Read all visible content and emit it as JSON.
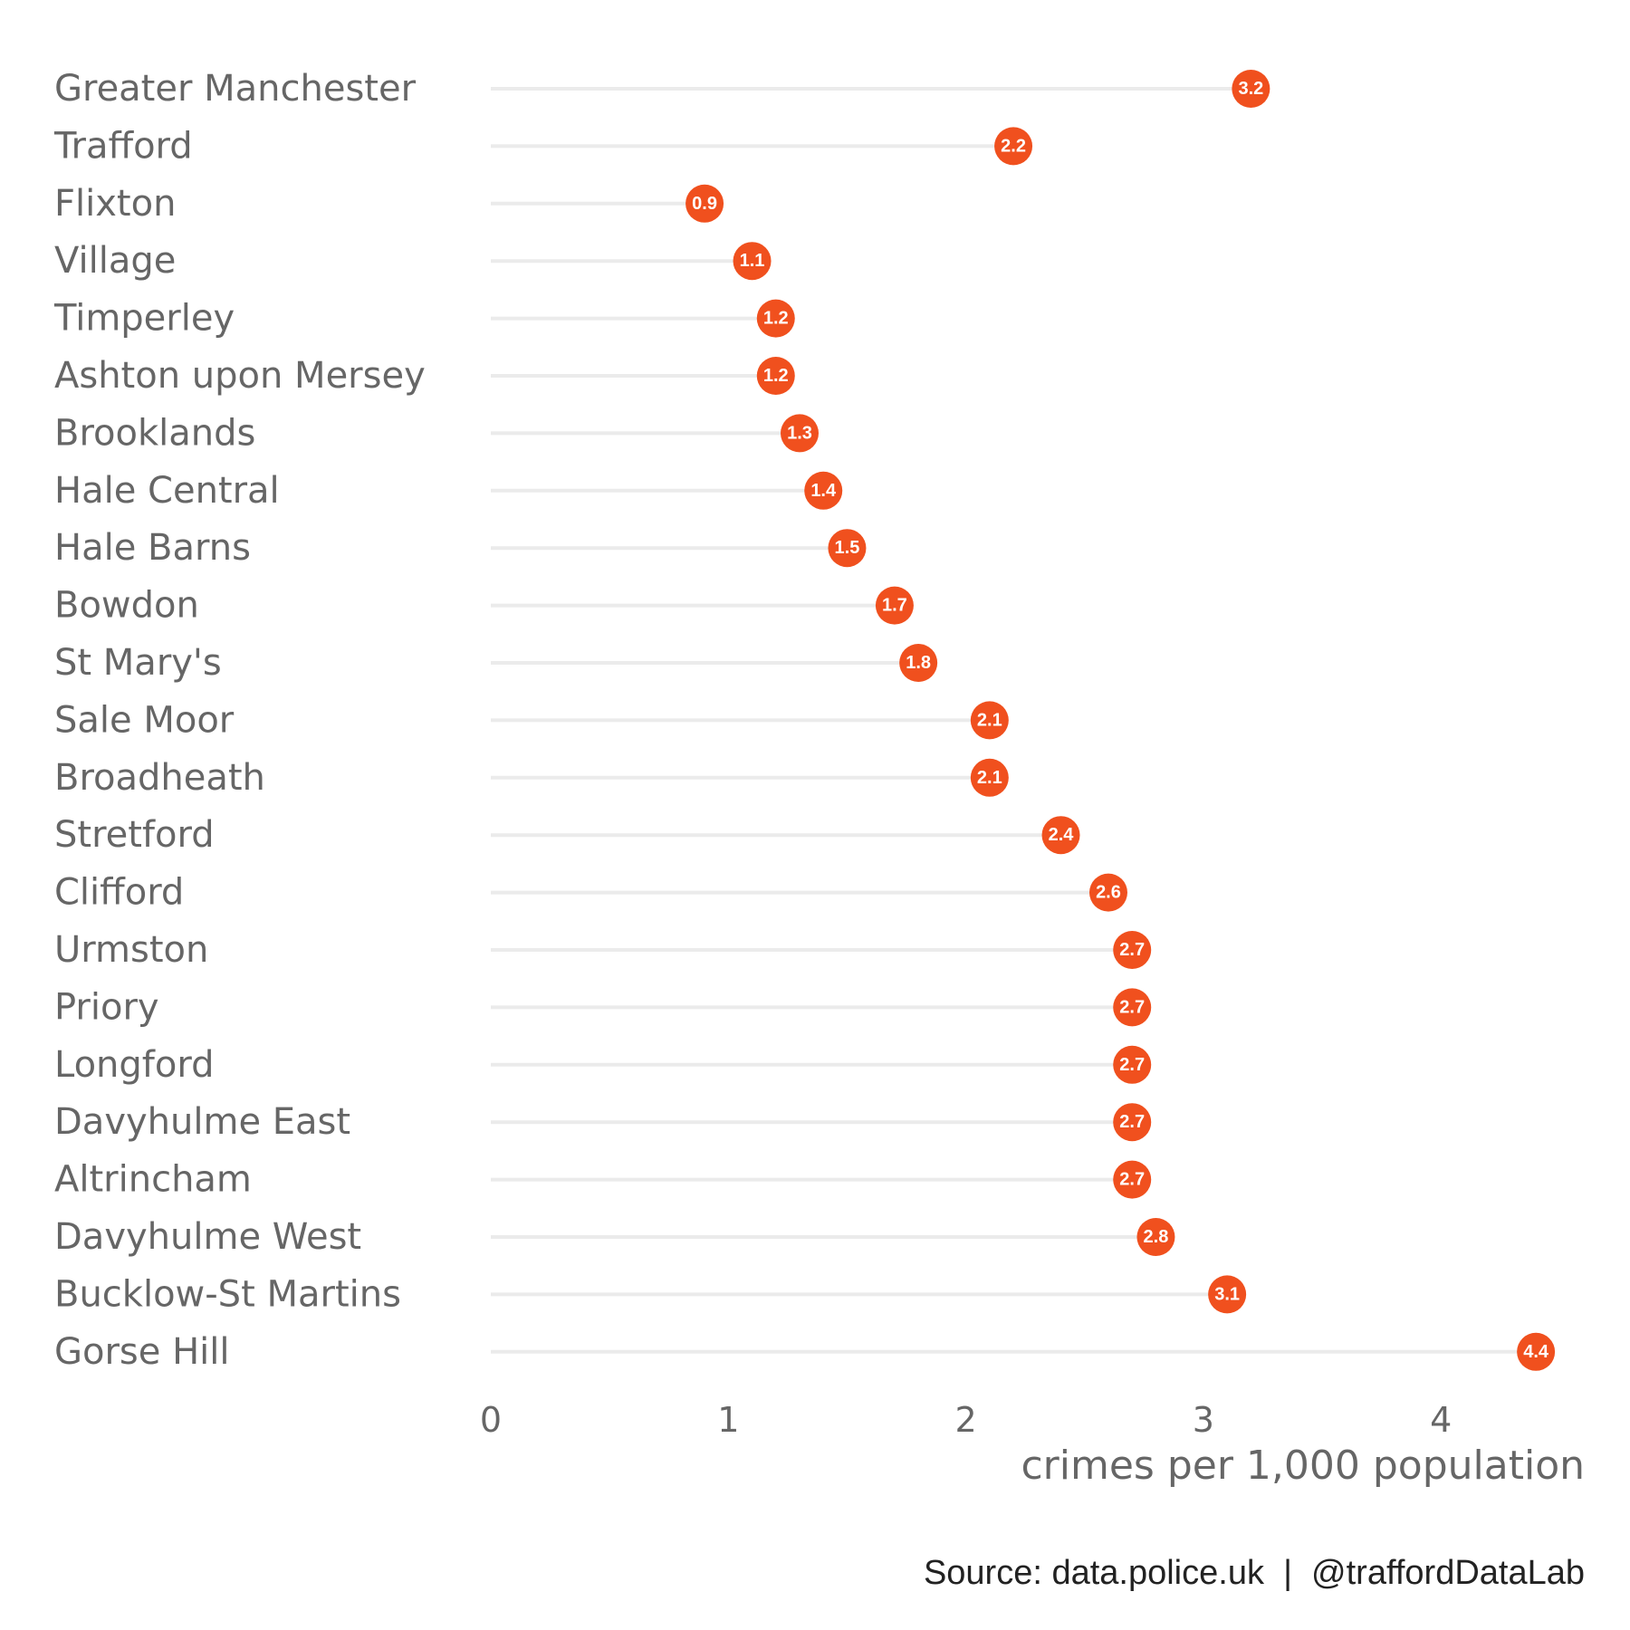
{
  "chart_data": {
    "type": "lollipop",
    "categories": [
      "Greater Manchester",
      "Trafford",
      "Flixton",
      "Village",
      "Timperley",
      "Ashton upon Mersey",
      "Brooklands",
      "Hale Central",
      "Hale Barns",
      "Bowdon",
      "St Mary's",
      "Sale Moor",
      "Broadheath",
      "Stretford",
      "Clifford",
      "Urmston",
      "Priory",
      "Longford",
      "Davyhulme East",
      "Altrincham",
      "Davyhulme West",
      "Bucklow-St Martins",
      "Gorse Hill"
    ],
    "values": [
      3.2,
      2.2,
      0.9,
      1.1,
      1.2,
      1.2,
      1.3,
      1.4,
      1.5,
      1.7,
      1.8,
      2.1,
      2.1,
      2.4,
      2.6,
      2.7,
      2.7,
      2.7,
      2.7,
      2.7,
      2.8,
      3.1,
      4.4
    ],
    "value_labels": [
      "3.2",
      "2.2",
      "0.9",
      "1.1",
      "1.2",
      "1.2",
      "1.3",
      "1.4",
      "1.5",
      "1.7",
      "1.8",
      "2.1",
      "2.1",
      "2.4",
      "2.6",
      "2.7",
      "2.7",
      "2.7",
      "2.7",
      "2.7",
      "2.8",
      "3.1",
      "4.4"
    ],
    "xlabel": "crimes per 1,000 population",
    "ylabel": "",
    "xlim": [
      0,
      4.5
    ],
    "xticks": [
      0,
      1,
      2,
      3,
      4
    ],
    "xtick_labels": [
      "0",
      "1",
      "2",
      "3",
      "4"
    ],
    "grid": false,
    "legend": "none",
    "colors": {
      "point": "#F0501E",
      "stem": "#EBEBEB",
      "label_text": "#FFFFFF",
      "axis_text": "#666666",
      "caption_text": "#222222"
    }
  },
  "caption": "Source: data.police.uk  |  @traffordDataLab"
}
